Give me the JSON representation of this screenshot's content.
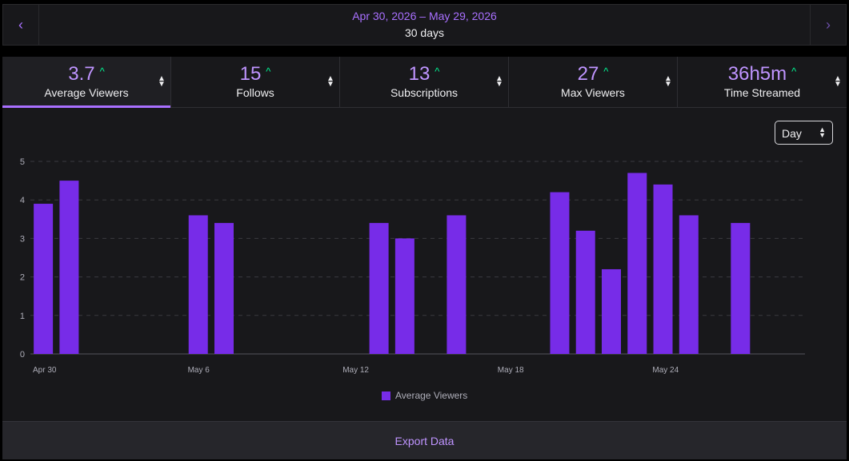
{
  "date_nav": {
    "range": "Apr 30, 2026 – May 29, 2026",
    "days": "30 days",
    "prev_icon": "chevron-left-icon",
    "next_icon": "chevron-right-icon"
  },
  "stats": [
    {
      "value": "3.7",
      "label": "Average Viewers",
      "trend": "up",
      "active": true
    },
    {
      "value": "15",
      "label": "Follows",
      "trend": "up",
      "active": false
    },
    {
      "value": "13",
      "label": "Subscriptions",
      "trend": "up",
      "active": false
    },
    {
      "value": "27",
      "label": "Max Viewers",
      "trend": "up",
      "active": false
    },
    {
      "value": "36h5m",
      "label": "Time Streamed",
      "trend": "up",
      "active": false
    }
  ],
  "granularity": {
    "selected": "Day"
  },
  "colors": {
    "accent": "#a970ff",
    "bar": "#772ce8",
    "trend_up": "#00f593"
  },
  "chart_data": {
    "type": "bar",
    "categories": [
      "Apr 30",
      "May 1",
      "May 2",
      "May 3",
      "May 4",
      "May 5",
      "May 6",
      "May 7",
      "May 8",
      "May 9",
      "May 10",
      "May 11",
      "May 12",
      "May 13",
      "May 14",
      "May 15",
      "May 16",
      "May 17",
      "May 18",
      "May 19",
      "May 20",
      "May 21",
      "May 22",
      "May 23",
      "May 24",
      "May 25",
      "May 26",
      "May 27",
      "May 28",
      "May 29"
    ],
    "x_tick_labels": [
      "Apr 30",
      "May 6",
      "May 12",
      "May 18",
      "May 24"
    ],
    "series": [
      {
        "name": "Average Viewers",
        "values": [
          3.9,
          4.5,
          null,
          null,
          null,
          null,
          3.6,
          3.4,
          null,
          null,
          null,
          null,
          null,
          3.4,
          3.0,
          null,
          3.6,
          null,
          null,
          null,
          4.2,
          3.2,
          2.2,
          4.7,
          4.4,
          3.6,
          null,
          3.4,
          null,
          null
        ]
      }
    ],
    "ylim": [
      0,
      5
    ],
    "y_ticks": [
      0,
      1,
      2,
      3,
      4,
      5
    ],
    "grid": true,
    "legend_position": "bottom"
  },
  "actions": {
    "export": "Export Data"
  }
}
